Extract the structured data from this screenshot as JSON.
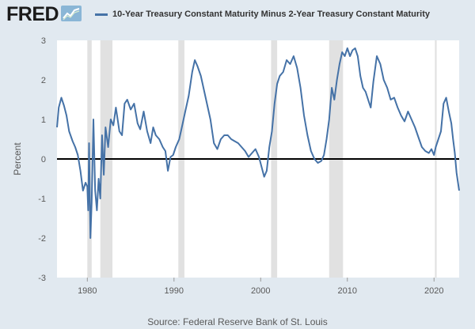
{
  "header": {
    "logo_text": "FRED",
    "logo_icon": "line-chart-icon"
  },
  "source": "Source: Federal Reserve Bank of St. Louis",
  "colors": {
    "line": "#4572a7",
    "recession": "#e1e1e1",
    "zero_line": "#000000",
    "background": "#e1e9f0",
    "plot_background": "#ffffff"
  },
  "chart_data": {
    "type": "line",
    "title": "",
    "xlabel": "",
    "ylabel": "Percent",
    "xlim": [
      1976.5,
      2022.9
    ],
    "ylim": [
      -3,
      3
    ],
    "x_ticks": [
      "1980",
      "1990",
      "2000",
      "2010",
      "2020"
    ],
    "y_ticks": [
      "3",
      "2",
      "1",
      "0",
      "-1",
      "-2",
      "-3"
    ],
    "grid": false,
    "legend": "top",
    "zero_line": 0,
    "recessions": [
      [
        1980.0,
        1980.5
      ],
      [
        1981.5,
        1982.9
      ],
      [
        1990.5,
        1991.2
      ],
      [
        2001.2,
        2001.9
      ],
      [
        2007.9,
        2009.5
      ],
      [
        2020.1,
        2020.3
      ]
    ],
    "series": [
      {
        "name": "10-Year Treasury Constant Maturity Minus 2-Year Treasury Constant Maturity",
        "x": [
          1976.5,
          1976.7,
          1977.0,
          1977.3,
          1977.6,
          1977.9,
          1978.3,
          1978.6,
          1978.9,
          1979.2,
          1979.5,
          1979.8,
          1980.0,
          1980.1,
          1980.2,
          1980.35,
          1980.5,
          1980.7,
          1980.9,
          1981.1,
          1981.3,
          1981.5,
          1981.7,
          1981.9,
          1982.1,
          1982.4,
          1982.7,
          1983.0,
          1983.3,
          1983.7,
          1984.0,
          1984.3,
          1984.6,
          1985.0,
          1985.4,
          1985.8,
          1986.1,
          1986.5,
          1986.9,
          1987.3,
          1987.6,
          1987.9,
          1988.3,
          1988.7,
          1989.0,
          1989.3,
          1989.6,
          1989.9,
          1990.2,
          1990.6,
          1990.9,
          1991.3,
          1991.7,
          1992.1,
          1992.4,
          1992.7,
          1993.1,
          1993.5,
          1993.9,
          1994.2,
          1994.6,
          1995.0,
          1995.4,
          1995.8,
          1996.2,
          1996.6,
          1997.0,
          1997.4,
          1997.8,
          1998.2,
          1998.6,
          1999.0,
          1999.4,
          1999.8,
          2000.1,
          2000.4,
          2000.7,
          2001.0,
          2001.3,
          2001.6,
          2001.9,
          2002.2,
          2002.6,
          2003.0,
          2003.4,
          2003.8,
          2004.2,
          2004.6,
          2005.0,
          2005.4,
          2005.8,
          2006.2,
          2006.6,
          2007.0,
          2007.3,
          2007.6,
          2007.9,
          2008.2,
          2008.5,
          2008.8,
          2009.1,
          2009.4,
          2009.7,
          2010.0,
          2010.3,
          2010.6,
          2010.9,
          2011.2,
          2011.5,
          2011.8,
          2012.1,
          2012.4,
          2012.7,
          2013.0,
          2013.4,
          2013.8,
          2014.2,
          2014.6,
          2015.0,
          2015.4,
          2015.8,
          2016.2,
          2016.6,
          2017.0,
          2017.4,
          2017.8,
          2018.2,
          2018.6,
          2019.0,
          2019.4,
          2019.7,
          2020.0,
          2020.2,
          2020.5,
          2020.8,
          2021.1,
          2021.4,
          2021.7,
          2022.0,
          2022.2,
          2022.4,
          2022.6,
          2022.9
        ],
        "values": [
          0.8,
          1.3,
          1.55,
          1.35,
          1.1,
          0.7,
          0.45,
          0.3,
          0.1,
          -0.3,
          -0.8,
          -0.6,
          -0.7,
          -1.3,
          0.4,
          -2.0,
          -1.1,
          1.0,
          -0.8,
          -1.3,
          -0.5,
          -1.0,
          0.6,
          -0.4,
          0.8,
          0.3,
          1.0,
          0.85,
          1.3,
          0.7,
          0.6,
          1.4,
          1.5,
          1.25,
          1.4,
          0.9,
          0.75,
          1.2,
          0.7,
          0.4,
          0.8,
          0.6,
          0.5,
          0.3,
          0.2,
          -0.3,
          0.05,
          0.1,
          0.3,
          0.5,
          0.8,
          1.2,
          1.6,
          2.2,
          2.5,
          2.35,
          2.1,
          1.7,
          1.3,
          1.0,
          0.4,
          0.25,
          0.5,
          0.6,
          0.6,
          0.5,
          0.45,
          0.4,
          0.3,
          0.2,
          0.05,
          0.15,
          0.25,
          0.05,
          -0.2,
          -0.45,
          -0.3,
          0.3,
          0.7,
          1.4,
          1.9,
          2.1,
          2.2,
          2.5,
          2.4,
          2.6,
          2.3,
          1.8,
          1.1,
          0.6,
          0.2,
          0.0,
          -0.1,
          -0.05,
          0.1,
          0.5,
          1.0,
          1.8,
          1.5,
          2.0,
          2.4,
          2.7,
          2.6,
          2.8,
          2.6,
          2.75,
          2.8,
          2.6,
          2.1,
          1.8,
          1.7,
          1.5,
          1.3,
          1.95,
          2.6,
          2.4,
          2.0,
          1.8,
          1.5,
          1.55,
          1.3,
          1.1,
          0.95,
          1.2,
          1.0,
          0.8,
          0.55,
          0.3,
          0.2,
          0.15,
          0.25,
          0.1,
          0.3,
          0.5,
          0.7,
          1.4,
          1.55,
          1.2,
          0.9,
          0.5,
          0.15,
          -0.35,
          -0.8
        ]
      }
    ]
  }
}
